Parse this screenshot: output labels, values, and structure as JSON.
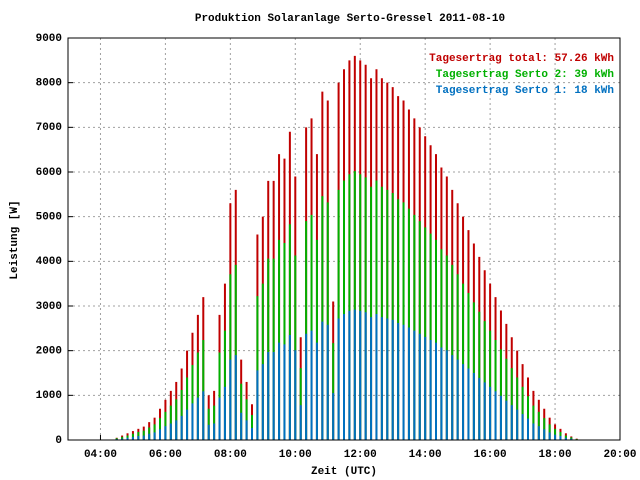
{
  "chart_data": {
    "type": "impulse",
    "title": "Produktion Solaranlage Serto-Gressel 2011-08-10",
    "xlabel": "Zeit (UTC)",
    "ylabel": "Leistung [W]",
    "xlim": [
      180,
      1200
    ],
    "xticks": [
      {
        "value": 240,
        "label": "04:00"
      },
      {
        "value": 360,
        "label": "06:00"
      },
      {
        "value": 480,
        "label": "08:00"
      },
      {
        "value": 600,
        "label": "10:00"
      },
      {
        "value": 720,
        "label": "12:00"
      },
      {
        "value": 840,
        "label": "14:00"
      },
      {
        "value": 960,
        "label": "16:00"
      },
      {
        "value": 1080,
        "label": "18:00"
      },
      {
        "value": 1200,
        "label": "20:00"
      }
    ],
    "ylim": [
      0,
      9000
    ],
    "yticks": [
      0,
      1000,
      2000,
      3000,
      4000,
      5000,
      6000,
      7000,
      8000,
      9000
    ],
    "grid": true,
    "legend": "top-right",
    "x": [
      270,
      280,
      290,
      300,
      310,
      320,
      330,
      340,
      350,
      360,
      370,
      380,
      390,
      400,
      410,
      420,
      430,
      440,
      450,
      460,
      470,
      480,
      490,
      500,
      510,
      520,
      530,
      540,
      550,
      560,
      570,
      580,
      590,
      600,
      610,
      620,
      630,
      640,
      650,
      660,
      670,
      680,
      690,
      700,
      710,
      720,
      730,
      740,
      750,
      760,
      770,
      780,
      790,
      800,
      810,
      820,
      830,
      840,
      850,
      860,
      870,
      880,
      890,
      900,
      910,
      920,
      930,
      940,
      950,
      960,
      970,
      980,
      990,
      1000,
      1010,
      1020,
      1030,
      1040,
      1050,
      1060,
      1070,
      1080,
      1090,
      1100,
      1110,
      1120
    ],
    "series": [
      {
        "name": "Tagesertrag total: 57.26 kWh",
        "color": "#c00000",
        "values": [
          50,
          100,
          150,
          200,
          250,
          300,
          400,
          500,
          700,
          900,
          1100,
          1300,
          1600,
          2000,
          2400,
          2800,
          3200,
          1000,
          1100,
          2800,
          3500,
          5300,
          5600,
          1800,
          1300,
          800,
          4600,
          5000,
          5800,
          5800,
          6400,
          6300,
          6900,
          5900,
          2300,
          7000,
          7200,
          6400,
          7800,
          7600,
          3100,
          8000,
          8300,
          8500,
          8600,
          8500,
          8400,
          8100,
          8300,
          8100,
          8000,
          7900,
          7700,
          7600,
          7400,
          7200,
          7000,
          6800,
          6600,
          6400,
          6100,
          5900,
          5600,
          5300,
          5000,
          4700,
          4400,
          4100,
          3800,
          3500,
          3200,
          2900,
          2600,
          2300,
          2000,
          1700,
          1400,
          1100,
          900,
          700,
          500,
          350,
          250,
          150,
          80,
          30
        ]
      },
      {
        "name": "Tagesertrag Serto 2: 39 kWh",
        "color": "#00b000",
        "values": [
          40,
          70,
          100,
          140,
          180,
          210,
          280,
          350,
          490,
          630,
          770,
          910,
          1120,
          1400,
          1680,
          1960,
          2240,
          700,
          770,
          1960,
          2450,
          3710,
          3920,
          1260,
          910,
          560,
          3220,
          3500,
          4060,
          4060,
          4480,
          4410,
          4830,
          4130,
          1610,
          4900,
          5040,
          4480,
          5460,
          5320,
          2170,
          5600,
          5810,
          5950,
          6020,
          5950,
          5880,
          5670,
          5810,
          5670,
          5600,
          5530,
          5390,
          5320,
          5180,
          5040,
          4900,
          4760,
          4620,
          4480,
          4270,
          4130,
          3920,
          3710,
          3500,
          3290,
          3080,
          2870,
          2660,
          2450,
          2240,
          2030,
          1820,
          1610,
          1400,
          1190,
          980,
          770,
          630,
          490,
          350,
          250,
          180,
          100,
          60,
          20
        ]
      },
      {
        "name": "Tagesertrag Serto 1: 18 kWh",
        "color": "#0070c0",
        "values": [
          20,
          30,
          50,
          70,
          90,
          100,
          140,
          170,
          240,
          310,
          370,
          440,
          540,
          680,
          820,
          950,
          1090,
          340,
          370,
          950,
          1190,
          1800,
          1900,
          610,
          440,
          270,
          1560,
          1700,
          1970,
          1970,
          2180,
          2140,
          2350,
          2010,
          780,
          2380,
          2450,
          2180,
          2650,
          2580,
          1050,
          2720,
          2820,
          2890,
          2920,
          2890,
          2860,
          2750,
          2820,
          2750,
          2720,
          2690,
          2620,
          2580,
          2520,
          2450,
          2380,
          2310,
          2240,
          2180,
          2070,
          2010,
          1900,
          1800,
          1700,
          1600,
          1500,
          1390,
          1290,
          1190,
          1090,
          990,
          880,
          780,
          680,
          580,
          480,
          370,
          310,
          240,
          170,
          120,
          90,
          50,
          30,
          10
        ]
      }
    ]
  }
}
